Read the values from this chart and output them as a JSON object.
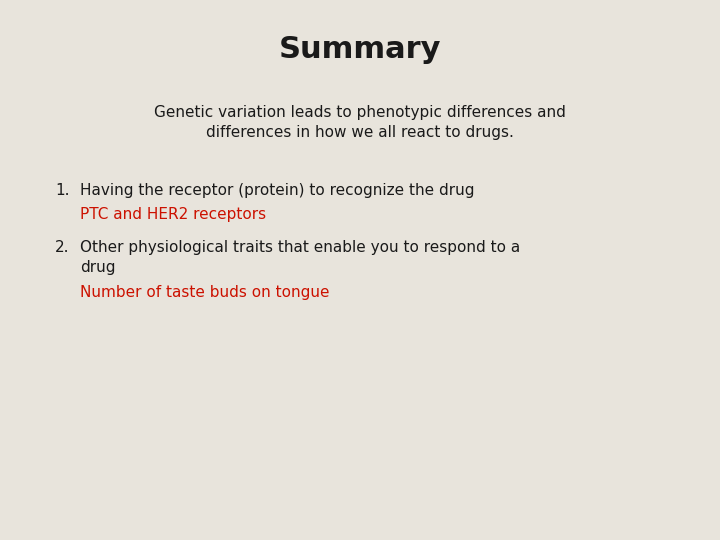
{
  "title": "Summary",
  "title_fontsize": 22,
  "title_fontweight": "bold",
  "subtitle_line1": "Genetic variation leads to phenotypic differences and",
  "subtitle_line2": "differences in how we all react to drugs.",
  "subtitle_fontsize": 11,
  "item1_text": "Having the receptor (protein) to recognize the drug",
  "item1_sub": "PTC and HER2 receptors",
  "item2_line1": "Other physiological traits that enable you to respond to a",
  "item2_line2": "drug",
  "item2_sub": "Number of taste buds on tongue",
  "background_color": "#e8e4dc",
  "text_color": "#1a1a1a",
  "red_color": "#cc1100",
  "body_fontsize": 11,
  "red_fontsize": 11
}
